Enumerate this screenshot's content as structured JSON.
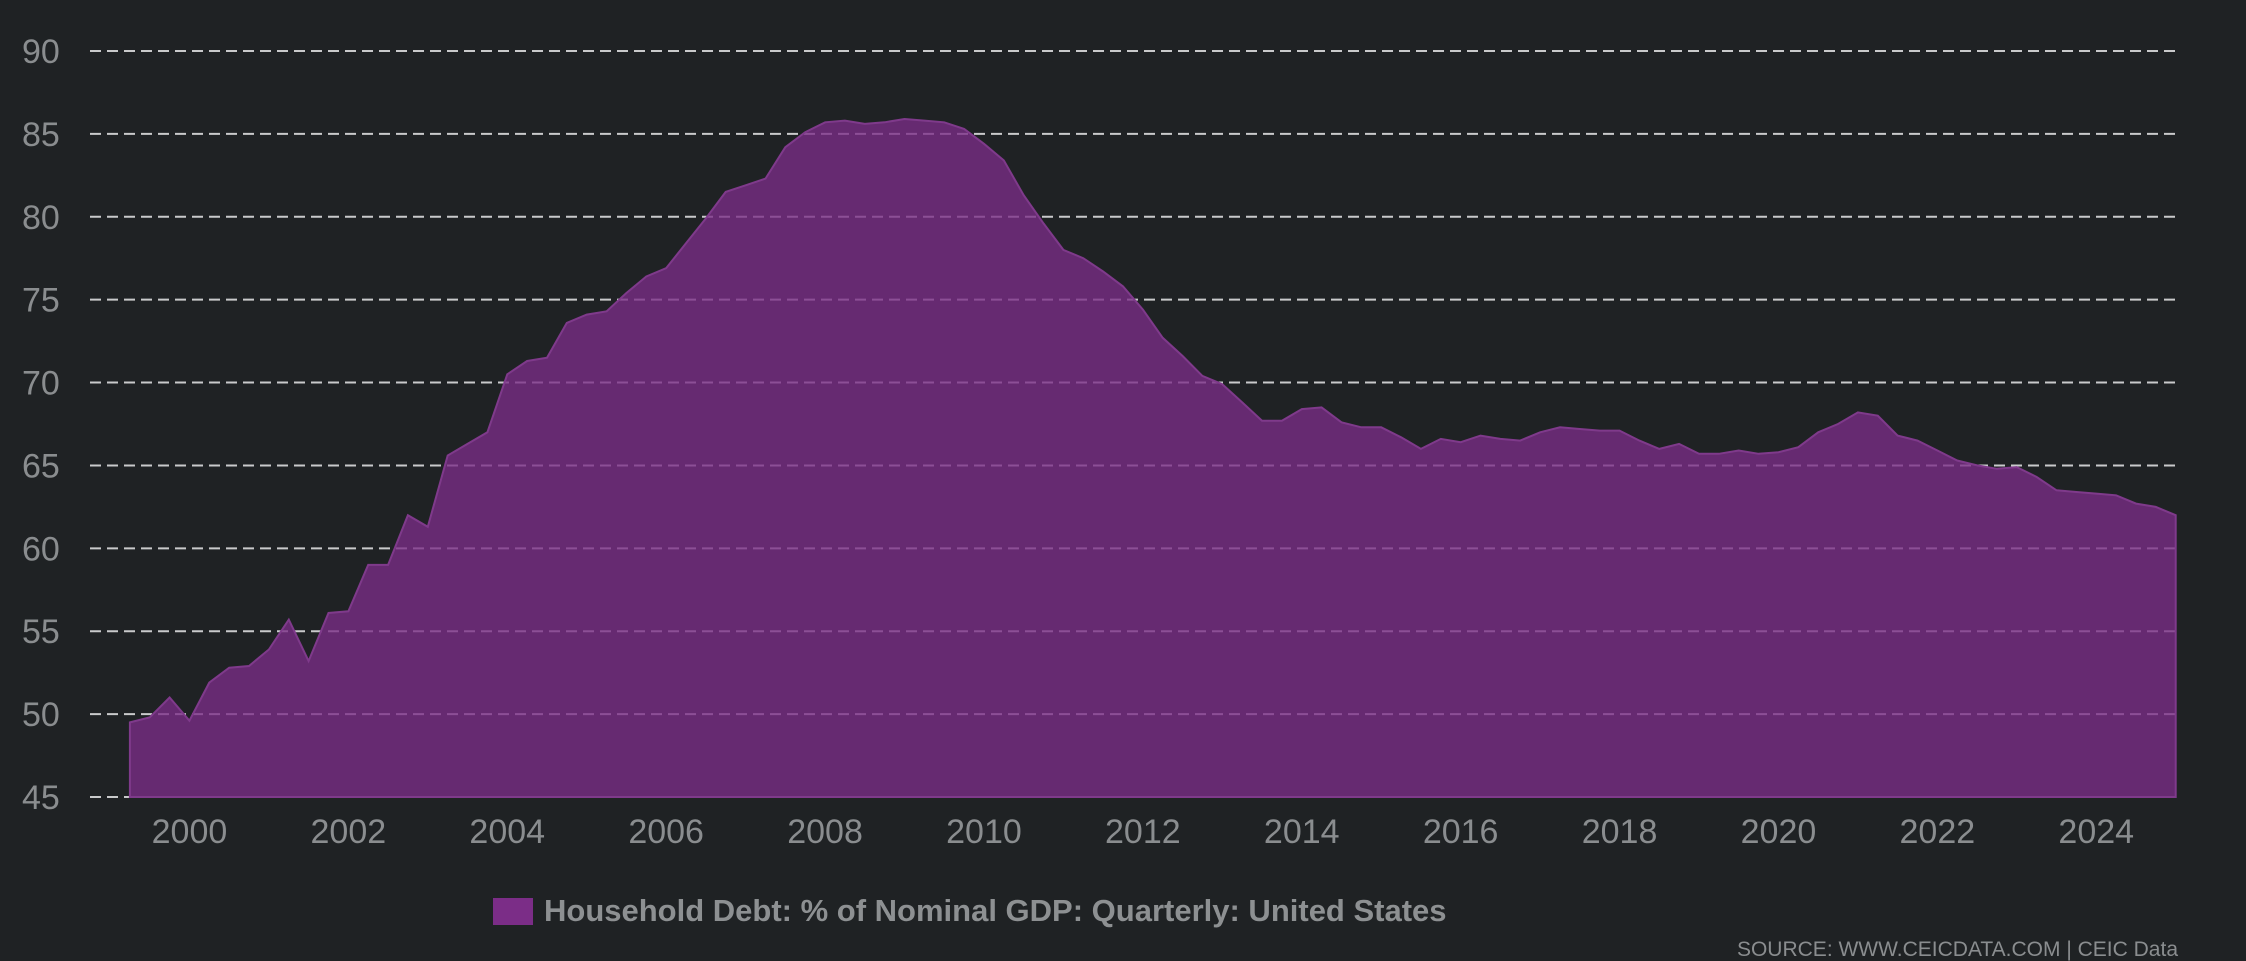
{
  "chart_data": {
    "type": "area",
    "title": "",
    "xlabel": "",
    "ylabel": "",
    "xlim": [
      1999.0,
      2025.25
    ],
    "ylim": [
      45,
      90
    ],
    "y_ticks": [
      45,
      50,
      55,
      60,
      65,
      70,
      75,
      80,
      85,
      90
    ],
    "x_ticks": [
      2000,
      2002,
      2004,
      2006,
      2008,
      2010,
      2012,
      2014,
      2016,
      2018,
      2020,
      2022,
      2024
    ],
    "y_tick_labels": [
      "45",
      "50",
      "55",
      "60",
      "65",
      "70",
      "75",
      "80",
      "85",
      "90"
    ],
    "x_tick_labels": [
      "2000",
      "2002",
      "2004",
      "2006",
      "2008",
      "2010",
      "2012",
      "2014",
      "2016",
      "2018",
      "2020",
      "2022",
      "2024"
    ],
    "grid": true,
    "legend_position": "bottom-center",
    "series": [
      {
        "name": "Household Debt: % of Nominal GDP: Quarterly: United States",
        "color": "#7b2d87",
        "x": [
          1999.25,
          1999.5,
          1999.75,
          2000.0,
          2000.25,
          2000.5,
          2000.75,
          2001.0,
          2001.25,
          2001.5,
          2001.75,
          2002.0,
          2002.25,
          2002.5,
          2002.75,
          2003.0,
          2003.25,
          2003.5,
          2003.75,
          2004.0,
          2004.25,
          2004.5,
          2004.75,
          2005.0,
          2005.25,
          2005.5,
          2005.75,
          2006.0,
          2006.25,
          2006.5,
          2006.75,
          2007.0,
          2007.25,
          2007.5,
          2007.75,
          2008.0,
          2008.25,
          2008.5,
          2008.75,
          2009.0,
          2009.25,
          2009.5,
          2009.75,
          2010.0,
          2010.25,
          2010.5,
          2010.75,
          2011.0,
          2011.25,
          2011.5,
          2011.75,
          2012.0,
          2012.25,
          2012.5,
          2012.75,
          2013.0,
          2013.25,
          2013.5,
          2013.75,
          2014.0,
          2014.25,
          2014.5,
          2014.75,
          2015.0,
          2015.25,
          2015.5,
          2015.75,
          2016.0,
          2016.25,
          2016.5,
          2016.75,
          2017.0,
          2017.25,
          2017.5,
          2017.75,
          2018.0,
          2018.25,
          2018.5,
          2018.75,
          2019.0,
          2019.25,
          2019.5,
          2019.75,
          2020.0,
          2020.25,
          2020.5,
          2020.75,
          2021.0,
          2021.25,
          2021.5,
          2021.75,
          2022.0,
          2022.25,
          2022.5,
          2022.75,
          2023.0,
          2023.25,
          2023.5,
          2023.75,
          2024.0,
          2024.25,
          2024.5,
          2024.75,
          2025.0
        ],
        "values": [
          49.5,
          49.8,
          51.0,
          49.6,
          51.9,
          52.8,
          52.9,
          53.9,
          55.7,
          53.2,
          56.1,
          56.2,
          59.0,
          59.0,
          62.0,
          61.3,
          65.6,
          66.3,
          67.0,
          70.5,
          71.3,
          71.5,
          73.6,
          74.1,
          74.3,
          75.4,
          76.4,
          76.9,
          78.4,
          79.9,
          81.5,
          81.9,
          82.3,
          84.2,
          85.1,
          85.7,
          85.8,
          85.6,
          85.7,
          85.9,
          85.8,
          85.7,
          85.3,
          84.4,
          83.4,
          81.3,
          79.6,
          78.0,
          77.5,
          76.7,
          75.8,
          74.4,
          72.7,
          71.6,
          70.4,
          69.9,
          68.8,
          67.7,
          67.7,
          68.4,
          68.5,
          67.6,
          67.3,
          67.3,
          66.7,
          66.0,
          66.6,
          66.4,
          66.8,
          66.6,
          66.5,
          67.0,
          67.3,
          67.2,
          67.1,
          67.1,
          66.5,
          66.0,
          66.3,
          65.7,
          65.7,
          65.9,
          65.7,
          65.8,
          66.1,
          67.0,
          67.5,
          68.2,
          68.0,
          66.8,
          66.5,
          65.9,
          65.3,
          65.0,
          64.8,
          64.9,
          64.3,
          63.5,
          63.4,
          63.3,
          63.2,
          62.7,
          62.5,
          62.0
        ]
      }
    ],
    "source": "SOURCE: WWW.CEICDATA.COM | CEIC Data"
  }
}
